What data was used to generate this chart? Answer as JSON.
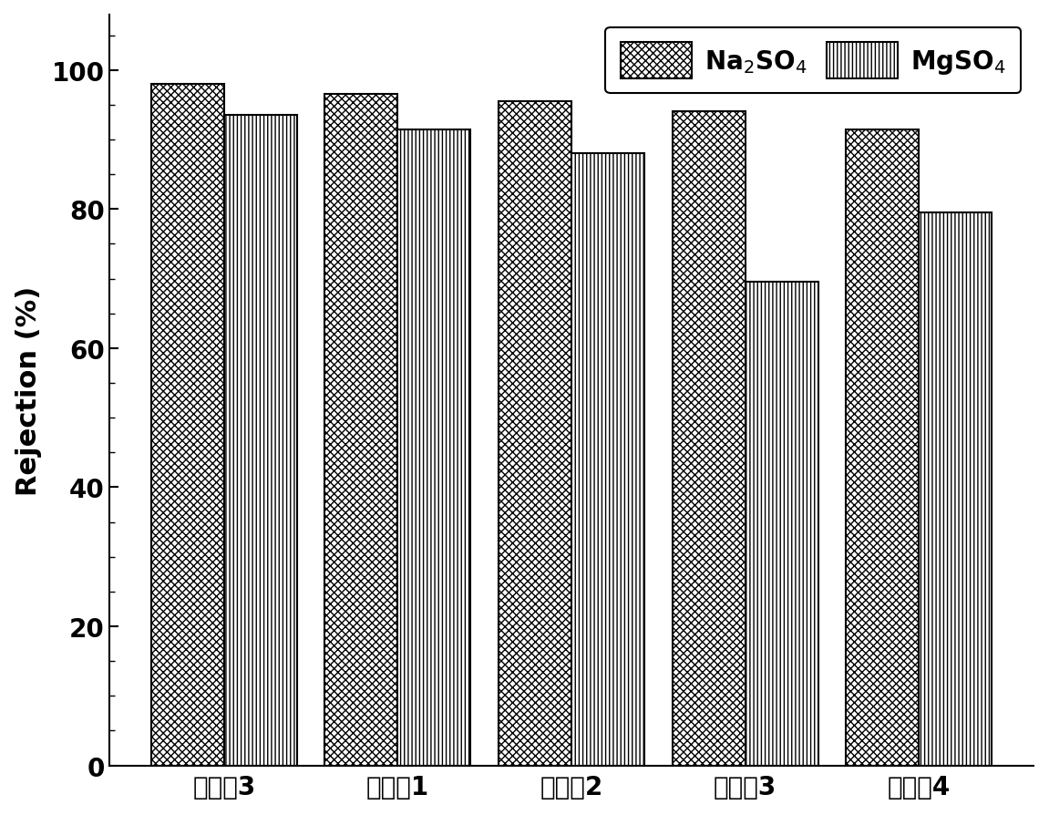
{
  "categories": [
    "实施化3",
    "处理衹1",
    "处理衹2",
    "处理衹3",
    "处理衹4"
  ],
  "na2so4_values": [
    98,
    96.5,
    95.5,
    94,
    91.5
  ],
  "mgso4_values": [
    93.5,
    91.5,
    88,
    69.5,
    79.5
  ],
  "ylabel": "Rejection (%)",
  "ylim": [
    0,
    108
  ],
  "yticks": [
    0,
    20,
    40,
    60,
    80,
    100
  ],
  "bar_width": 0.42,
  "na2so4_label": "Na$_2$SO$_4$",
  "mgso4_label": "MgSO$_4$",
  "na2so4_hatch": "xxxx",
  "mgso4_hatch": "||||",
  "background_color": "#ffffff",
  "bar_edgecolor": "#000000",
  "bar_facecolor": "#ffffff",
  "label_fontsize": 22,
  "tick_fontsize": 20,
  "legend_fontsize": 20
}
